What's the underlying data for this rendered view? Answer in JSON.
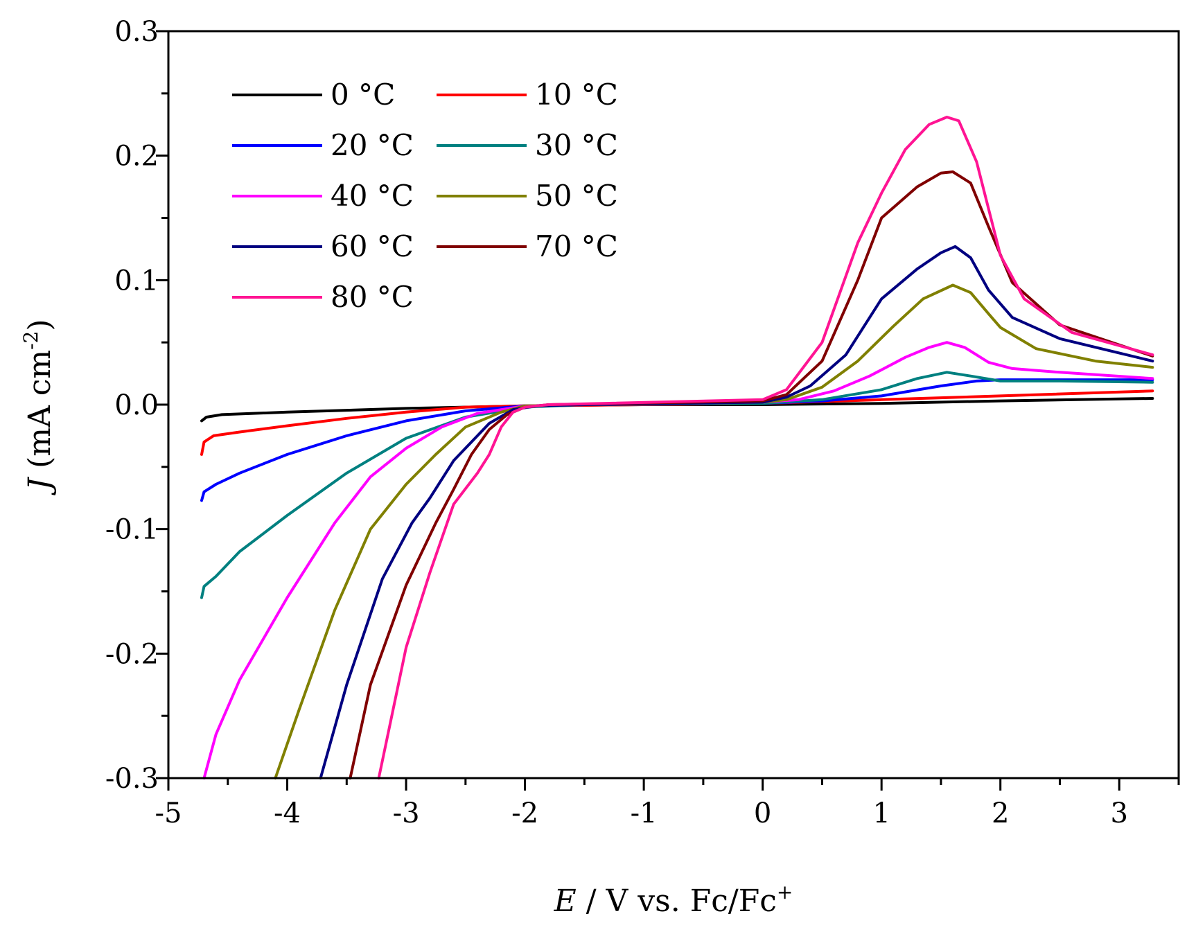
{
  "chart_data": {
    "type": "line",
    "title": "",
    "xlabel": {
      "italic": "E",
      "rest": " / V vs. Fc/Fc",
      "sup": "+"
    },
    "ylabel": {
      "italic": "J",
      "rest": " (mA cm",
      "sup": "-2",
      "close": ")"
    },
    "xlim": [
      -5,
      3.5
    ],
    "ylim": [
      -0.3,
      0.3
    ],
    "x_ticks": [
      -5,
      -4,
      -3,
      -2,
      -1,
      0,
      1,
      2,
      3
    ],
    "x_tick_labels": [
      "-5",
      "-4",
      "-3",
      "-2",
      "-1",
      "0",
      "1",
      "2",
      "3"
    ],
    "y_ticks": [
      -0.3,
      -0.2,
      -0.1,
      0.0,
      0.1,
      0.2,
      0.3
    ],
    "y_tick_labels": [
      "-0.3",
      "-0.2",
      "-0.1",
      "0.0",
      "0.1",
      "0.2",
      "0.3"
    ],
    "legend_position": "top-left",
    "grid": false,
    "series": [
      {
        "name": "0 °C",
        "color": "#000000",
        "points": [
          [
            -4.72,
            -0.013
          ],
          [
            -4.68,
            -0.01
          ],
          [
            -4.55,
            -0.008
          ],
          [
            -4.0,
            -0.006
          ],
          [
            -3.0,
            -0.003
          ],
          [
            -2.0,
            -0.001
          ],
          [
            -1.0,
            0.0
          ],
          [
            0.0,
            0.0
          ],
          [
            1.0,
            0.001
          ],
          [
            2.0,
            0.003
          ],
          [
            3.28,
            0.005
          ]
        ]
      },
      {
        "name": "10 °C",
        "color": "#ff0000",
        "points": [
          [
            -4.72,
            -0.04
          ],
          [
            -4.7,
            -0.03
          ],
          [
            -4.62,
            -0.025
          ],
          [
            -4.4,
            -0.022
          ],
          [
            -4.0,
            -0.017
          ],
          [
            -3.5,
            -0.011
          ],
          [
            -3.0,
            -0.006
          ],
          [
            -2.5,
            -0.002
          ],
          [
            -2.0,
            -0.001
          ],
          [
            -1.0,
            0.0
          ],
          [
            0.0,
            0.001
          ],
          [
            1.0,
            0.004
          ],
          [
            2.0,
            0.007
          ],
          [
            3.28,
            0.011
          ]
        ]
      },
      {
        "name": "20 °C",
        "color": "#0000ff",
        "points": [
          [
            -4.72,
            -0.077
          ],
          [
            -4.7,
            -0.07
          ],
          [
            -4.6,
            -0.064
          ],
          [
            -4.4,
            -0.055
          ],
          [
            -4.0,
            -0.04
          ],
          [
            -3.5,
            -0.025
          ],
          [
            -3.0,
            -0.013
          ],
          [
            -2.5,
            -0.005
          ],
          [
            -2.0,
            -0.001
          ],
          [
            -1.5,
            0.0
          ],
          [
            0.0,
            0.001
          ],
          [
            0.5,
            0.003
          ],
          [
            1.0,
            0.007
          ],
          [
            1.5,
            0.015
          ],
          [
            1.8,
            0.019
          ],
          [
            2.0,
            0.02
          ],
          [
            3.28,
            0.02
          ]
        ]
      },
      {
        "name": "30 °C",
        "color": "#008080",
        "points": [
          [
            -4.72,
            -0.155
          ],
          [
            -4.7,
            -0.146
          ],
          [
            -4.6,
            -0.138
          ],
          [
            -4.4,
            -0.118
          ],
          [
            -4.0,
            -0.089
          ],
          [
            -3.5,
            -0.055
          ],
          [
            -3.0,
            -0.027
          ],
          [
            -2.5,
            -0.01
          ],
          [
            -2.0,
            -0.002
          ],
          [
            -1.5,
            0.0
          ],
          [
            0.0,
            0.001
          ],
          [
            0.5,
            0.004
          ],
          [
            1.0,
            0.012
          ],
          [
            1.3,
            0.021
          ],
          [
            1.55,
            0.026
          ],
          [
            1.75,
            0.023
          ],
          [
            2.0,
            0.019
          ],
          [
            2.5,
            0.019
          ],
          [
            3.28,
            0.018
          ]
        ]
      },
      {
        "name": "40 °C",
        "color": "#ff00ff",
        "points": [
          [
            -4.7,
            -0.3
          ],
          [
            -4.6,
            -0.265
          ],
          [
            -4.4,
            -0.221
          ],
          [
            -4.0,
            -0.155
          ],
          [
            -3.6,
            -0.095
          ],
          [
            -3.3,
            -0.058
          ],
          [
            -3.0,
            -0.035
          ],
          [
            -2.7,
            -0.018
          ],
          [
            -2.4,
            -0.007
          ],
          [
            -2.0,
            -0.001
          ],
          [
            -1.5,
            0.0
          ],
          [
            0.0,
            0.002
          ],
          [
            0.3,
            0.004
          ],
          [
            0.6,
            0.011
          ],
          [
            0.9,
            0.023
          ],
          [
            1.2,
            0.038
          ],
          [
            1.4,
            0.046
          ],
          [
            1.55,
            0.05
          ],
          [
            1.7,
            0.046
          ],
          [
            1.9,
            0.034
          ],
          [
            2.1,
            0.029
          ],
          [
            2.5,
            0.026
          ],
          [
            3.28,
            0.021
          ]
        ]
      },
      {
        "name": "50 °C",
        "color": "#808000",
        "points": [
          [
            -4.1,
            -0.3
          ],
          [
            -3.9,
            -0.245
          ],
          [
            -3.6,
            -0.165
          ],
          [
            -3.3,
            -0.1
          ],
          [
            -3.0,
            -0.064
          ],
          [
            -2.75,
            -0.04
          ],
          [
            -2.5,
            -0.018
          ],
          [
            -2.2,
            -0.006
          ],
          [
            -2.0,
            -0.001
          ],
          [
            -1.5,
            0.0
          ],
          [
            0.0,
            0.002
          ],
          [
            0.2,
            0.004
          ],
          [
            0.5,
            0.014
          ],
          [
            0.8,
            0.035
          ],
          [
            1.1,
            0.063
          ],
          [
            1.35,
            0.085
          ],
          [
            1.6,
            0.096
          ],
          [
            1.75,
            0.09
          ],
          [
            1.9,
            0.073
          ],
          [
            2.0,
            0.062
          ],
          [
            2.3,
            0.045
          ],
          [
            2.8,
            0.035
          ],
          [
            3.28,
            0.03
          ]
        ]
      },
      {
        "name": "60 °C",
        "color": "#000080",
        "points": [
          [
            -3.72,
            -0.3
          ],
          [
            -3.5,
            -0.225
          ],
          [
            -3.2,
            -0.14
          ],
          [
            -2.95,
            -0.095
          ],
          [
            -2.8,
            -0.075
          ],
          [
            -2.6,
            -0.045
          ],
          [
            -2.45,
            -0.03
          ],
          [
            -2.3,
            -0.015
          ],
          [
            -2.1,
            -0.004
          ],
          [
            -1.9,
            -0.001
          ],
          [
            -1.5,
            0.0
          ],
          [
            0.0,
            0.002
          ],
          [
            0.2,
            0.006
          ],
          [
            0.4,
            0.015
          ],
          [
            0.7,
            0.04
          ],
          [
            1.0,
            0.085
          ],
          [
            1.3,
            0.109
          ],
          [
            1.5,
            0.122
          ],
          [
            1.62,
            0.127
          ],
          [
            1.75,
            0.118
          ],
          [
            1.9,
            0.092
          ],
          [
            2.1,
            0.07
          ],
          [
            2.5,
            0.053
          ],
          [
            3.28,
            0.035
          ]
        ]
      },
      {
        "name": "70 °C",
        "color": "#800000",
        "points": [
          [
            -3.47,
            -0.3
          ],
          [
            -3.3,
            -0.225
          ],
          [
            -3.0,
            -0.145
          ],
          [
            -2.75,
            -0.095
          ],
          [
            -2.6,
            -0.068
          ],
          [
            -2.45,
            -0.04
          ],
          [
            -2.3,
            -0.02
          ],
          [
            -2.15,
            -0.008
          ],
          [
            -2.0,
            -0.002
          ],
          [
            -1.8,
            0.0
          ],
          [
            0.0,
            0.003
          ],
          [
            0.2,
            0.008
          ],
          [
            0.5,
            0.035
          ],
          [
            0.8,
            0.1
          ],
          [
            1.0,
            0.15
          ],
          [
            1.3,
            0.175
          ],
          [
            1.5,
            0.186
          ],
          [
            1.6,
            0.187
          ],
          [
            1.75,
            0.178
          ],
          [
            1.9,
            0.143
          ],
          [
            2.1,
            0.098
          ],
          [
            2.5,
            0.064
          ],
          [
            3.28,
            0.039
          ]
        ]
      },
      {
        "name": "80 °C",
        "color": "#ff1493",
        "points": [
          [
            -3.23,
            -0.3
          ],
          [
            -3.0,
            -0.195
          ],
          [
            -2.8,
            -0.135
          ],
          [
            -2.6,
            -0.08
          ],
          [
            -2.4,
            -0.055
          ],
          [
            -2.3,
            -0.04
          ],
          [
            -2.2,
            -0.018
          ],
          [
            -2.1,
            -0.006
          ],
          [
            -2.0,
            -0.002
          ],
          [
            -1.8,
            0.0
          ],
          [
            0.0,
            0.004
          ],
          [
            0.2,
            0.012
          ],
          [
            0.5,
            0.05
          ],
          [
            0.8,
            0.13
          ],
          [
            1.0,
            0.17
          ],
          [
            1.2,
            0.205
          ],
          [
            1.4,
            0.225
          ],
          [
            1.55,
            0.231
          ],
          [
            1.65,
            0.228
          ],
          [
            1.8,
            0.195
          ],
          [
            2.0,
            0.12
          ],
          [
            2.2,
            0.085
          ],
          [
            2.6,
            0.058
          ],
          [
            3.28,
            0.04
          ]
        ]
      }
    ]
  }
}
